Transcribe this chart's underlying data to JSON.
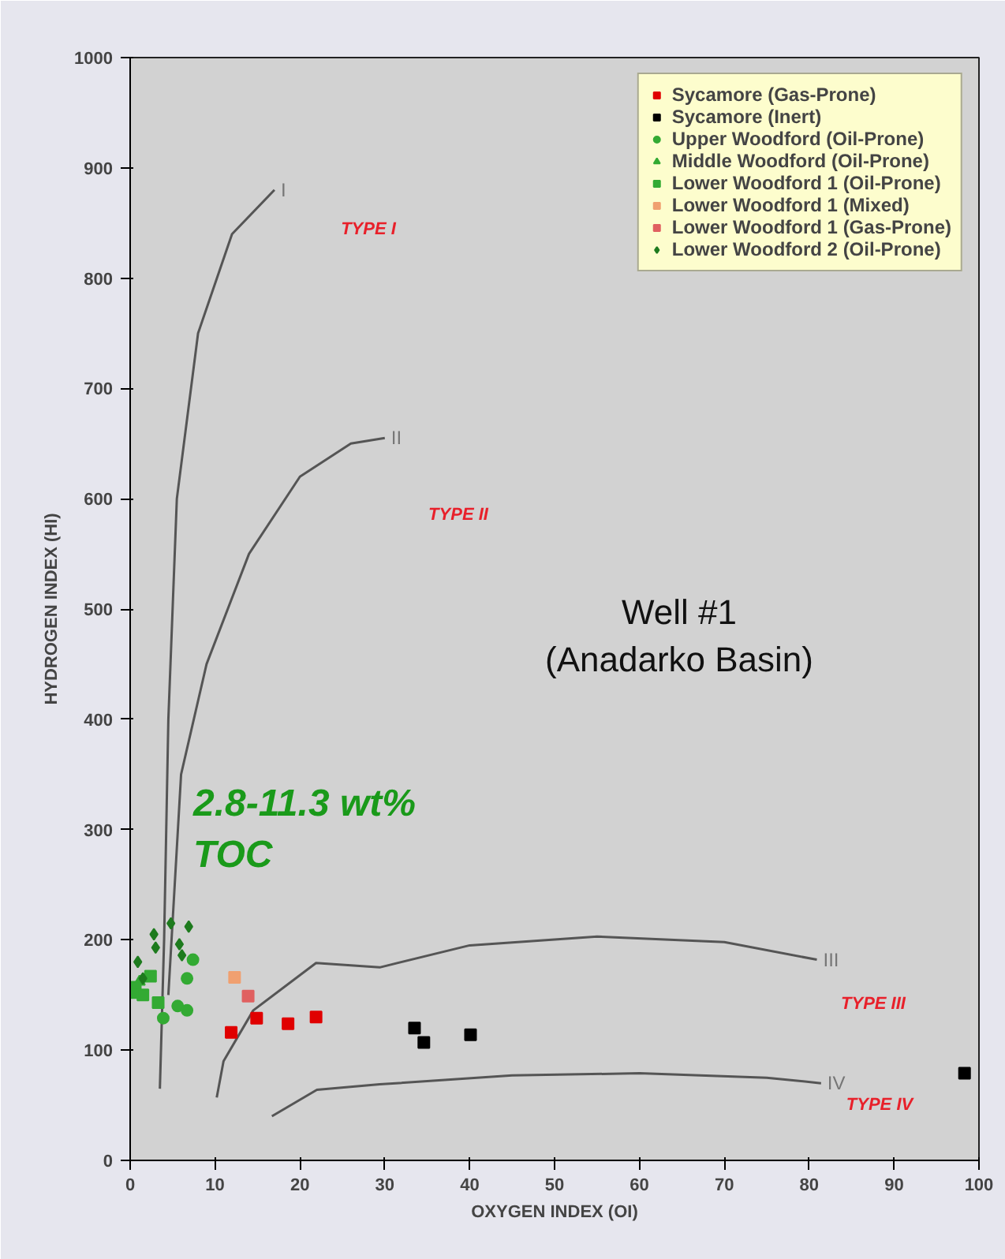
{
  "chart_data": {
    "type": "scatter",
    "title": "Well #1\n(Anadarko Basin)",
    "xlabel": "OXYGEN INDEX (OI)",
    "ylabel": "HYDROGEN INDEX (HI)",
    "xlim": [
      0,
      100
    ],
    "ylim": [
      0,
      1000
    ],
    "xticks": [
      0,
      10,
      20,
      30,
      40,
      50,
      60,
      70,
      80,
      90,
      100
    ],
    "yticks": [
      0,
      100,
      200,
      300,
      400,
      500,
      600,
      700,
      800,
      900,
      1000
    ],
    "grid": false,
    "legend": "top right",
    "annotations": [
      "2.8-11.3 wt%\nTOC",
      "TYPE I",
      "TYPE II",
      "TYPE III",
      "TYPE IV"
    ],
    "series": [
      {
        "name": "I",
        "type": "line",
        "color": "#555555",
        "x": [
          3.5,
          4,
          4.5,
          5.5,
          8,
          12,
          17
        ],
        "values": [
          65,
          200,
          400,
          600,
          750,
          840,
          880
        ]
      },
      {
        "name": "II",
        "type": "line",
        "color": "#555555",
        "x": [
          4.5,
          6,
          9,
          14,
          20,
          26,
          30
        ],
        "values": [
          150,
          350,
          450,
          550,
          620,
          650,
          655
        ]
      },
      {
        "name": "III",
        "type": "line",
        "color": "#555555",
        "x": [
          10.2,
          11,
          14.5,
          21.9,
          29.4,
          40,
          55,
          70,
          80.9
        ],
        "values": [
          57,
          90,
          136,
          179,
          175,
          195,
          203,
          198,
          182
        ]
      },
      {
        "name": "IV",
        "type": "line",
        "color": "#555555",
        "x": [
          16.7,
          22,
          29.4,
          45,
          60,
          75,
          81.4
        ],
        "values": [
          40,
          64,
          69,
          77,
          79,
          75,
          70
        ]
      },
      {
        "name": "Sycamore (Gas-Prone)",
        "marker": "square",
        "color": "#e00000",
        "x": [
          11.9,
          14.9,
          18.6,
          21.9
        ],
        "values": [
          116,
          129,
          124,
          130
        ]
      },
      {
        "name": "Sycamore (Inert)",
        "marker": "square",
        "color": "#000000",
        "x": [
          33.5,
          34.6,
          40.1,
          98.3
        ],
        "values": [
          120,
          107,
          114,
          79
        ]
      },
      {
        "name": "Upper Woodford (Oil-Prone)",
        "marker": "circle",
        "color": "#33aa33",
        "x": [
          6.7,
          6.7,
          3.9,
          7.4,
          5.6
        ],
        "values": [
          165,
          136,
          129,
          182,
          140
        ]
      },
      {
        "name": "Middle Woodford (Oil-Prone)",
        "marker": "triangle",
        "color": "#33aa33",
        "x": [
          0.4,
          1.1
        ],
        "values": [
          150,
          162
        ]
      },
      {
        "name": "Lower Woodford 1 (Oil-Prone)",
        "marker": "square",
        "color": "#33aa33",
        "x": [
          0.6,
          1.5,
          2.4,
          3.3
        ],
        "values": [
          157,
          150,
          167,
          143
        ]
      },
      {
        "name": "Lower Woodford 1 (Mixed)",
        "marker": "square",
        "color": "#f0a070",
        "x": [
          12.3
        ],
        "values": [
          166
        ]
      },
      {
        "name": "Lower Woodford 1 (Gas-Prone)",
        "marker": "square",
        "color": "#e06060",
        "x": [
          13.9
        ],
        "values": [
          149
        ]
      },
      {
        "name": "Lower Woodford 2 (Oil-Prone)",
        "marker": "diamond",
        "color": "#1e7b1e",
        "x": [
          4.8,
          6.9,
          2.8,
          3.0,
          5.8,
          6.1,
          0.9,
          1.5
        ],
        "values": [
          215,
          212,
          205,
          193,
          196,
          186,
          180,
          165
        ]
      }
    ]
  }
}
